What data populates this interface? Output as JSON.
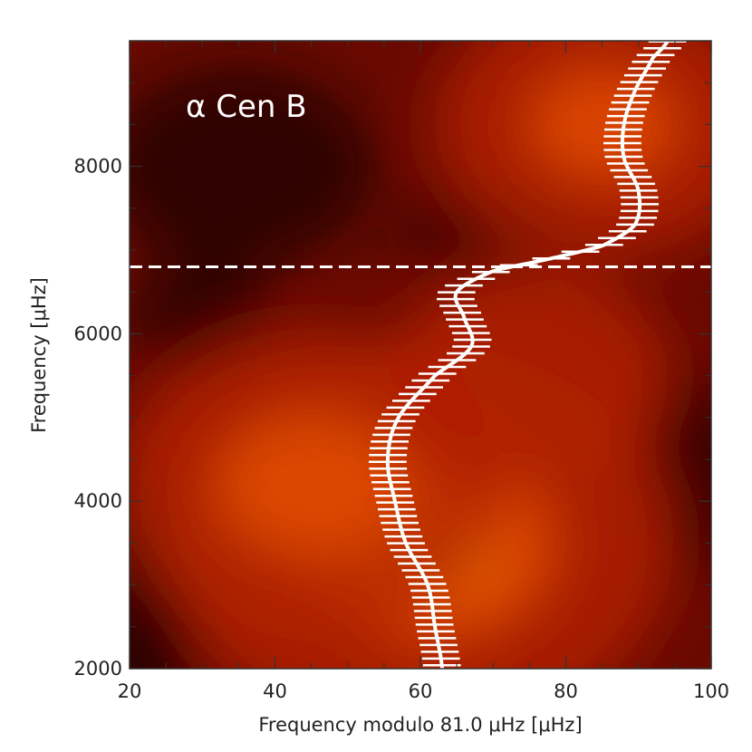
{
  "chart_data": {
    "type": "heatmap",
    "annotation": "α Cen B",
    "xlabel": "Frequency modulo 81.0 μHz [μHz]",
    "ylabel": "Frequency [μHz]",
    "xlim": [
      20,
      100
    ],
    "ylim": [
      2000,
      9500
    ],
    "x_ticks": [
      20,
      40,
      60,
      80,
      100
    ],
    "y_ticks": [
      2000,
      4000,
      6000,
      8000
    ],
    "threshold_line": {
      "y": 6800,
      "style": "dashed",
      "color": "#ffffff"
    },
    "ridge": {
      "color": "#ffffff",
      "points": [
        [
          63.0,
          2000
        ],
        [
          62.0,
          2500
        ],
        [
          61.0,
          3000
        ],
        [
          58.0,
          3500
        ],
        [
          56.5,
          4000
        ],
        [
          55.5,
          4500
        ],
        [
          57.0,
          5000
        ],
        [
          62.0,
          5500
        ],
        [
          67.0,
          5850
        ],
        [
          66.0,
          6200
        ],
        [
          65.0,
          6500
        ],
        [
          70.0,
          6750
        ],
        [
          78.0,
          6900
        ],
        [
          85.0,
          7050
        ],
        [
          89.5,
          7300
        ],
        [
          90.0,
          7700
        ],
        [
          88.0,
          8100
        ],
        [
          88.0,
          8500
        ],
        [
          89.5,
          8900
        ],
        [
          92.0,
          9300
        ],
        [
          94.0,
          9500
        ]
      ],
      "error_half_width": 2.6
    },
    "colormap": [
      "#1a0000",
      "#6a0a00",
      "#b02000",
      "#e04a00",
      "#ff8c10"
    ],
    "hotspots": [
      {
        "x": 60,
        "y": 3500,
        "intensity": 1.0
      },
      {
        "x": 45,
        "y": 4200,
        "intensity": 0.7
      },
      {
        "x": 85,
        "y": 8500,
        "intensity": 0.55
      },
      {
        "x": 75,
        "y": 5500,
        "intensity": 0.4
      }
    ]
  }
}
